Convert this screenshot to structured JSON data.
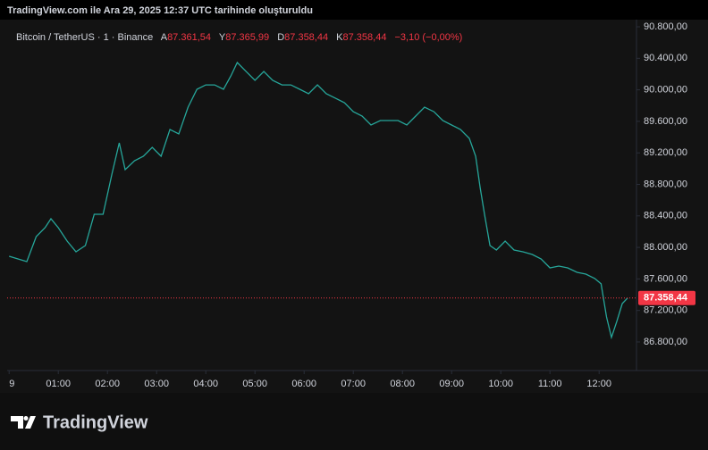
{
  "header": "TradingView.com ile Ara 29, 2025 12:37 UTC tarihinde oluşturuldu",
  "legend": {
    "symbol": "Bitcoin / TetherUS · 1 · Binance",
    "open_label": "A",
    "open": "87.361,54",
    "high_label": "Y",
    "high": "87.365,99",
    "low_label": "D",
    "low": "87.358,44",
    "close_label": "K",
    "close": "87.358,44",
    "change": "−3,10 (−0,00%)"
  },
  "brand": "TradingView",
  "chart_data": {
    "type": "line",
    "color": "#26a69a",
    "x": [
      0,
      0.18,
      0.36,
      0.55,
      0.73,
      0.85,
      1,
      1.18,
      1.36,
      1.55,
      1.73,
      1.91,
      2.09,
      2.24,
      2.36,
      2.55,
      2.73,
      2.91,
      3.09,
      3.27,
      3.45,
      3.64,
      3.82,
      4,
      4.18,
      4.36,
      4.51,
      4.64,
      4.82,
      5,
      5.18,
      5.36,
      5.55,
      5.73,
      5.91,
      6.09,
      6.27,
      6.45,
      6.64,
      6.82,
      7,
      7.18,
      7.36,
      7.55,
      7.73,
      7.91,
      8.09,
      8.27,
      8.45,
      8.64,
      8.82,
      9,
      9.18,
      9.36,
      9.49,
      9.58,
      9.67,
      9.78,
      9.91,
      10.09,
      10.27,
      10.45,
      10.64,
      10.82,
      11,
      11.18,
      11.36,
      11.55,
      11.73,
      11.91,
      12.04,
      12.15,
      12.25,
      12.36,
      12.47,
      12.58
    ],
    "values": [
      87888,
      87854,
      87820,
      88137,
      88250,
      88364,
      88250,
      88080,
      87944,
      88024,
      88420,
      88420,
      88930,
      89327,
      88987,
      89100,
      89157,
      89270,
      89157,
      89497,
      89440,
      89780,
      90007,
      90063,
      90063,
      90007,
      90177,
      90347,
      90233,
      90120,
      90233,
      90120,
      90063,
      90063,
      90007,
      89950,
      90063,
      89950,
      89893,
      89837,
      89723,
      89667,
      89554,
      89610,
      89610,
      89610,
      89554,
      89667,
      89780,
      89723,
      89610,
      89554,
      89497,
      89384,
      89157,
      88760,
      88420,
      88024,
      87967,
      88080,
      87967,
      87944,
      87910,
      87854,
      87740,
      87763,
      87740,
      87684,
      87661,
      87605,
      87537,
      87117,
      86857,
      87061,
      87287,
      87358.44
    ],
    "xlim": [
      -0.04,
      12.76
    ],
    "xticks": [
      {
        "value": 0,
        "label": "9"
      },
      {
        "value": 1,
        "label": "01:00"
      },
      {
        "value": 2,
        "label": "02:00"
      },
      {
        "value": 3,
        "label": "03:00"
      },
      {
        "value": 4,
        "label": "04:00"
      },
      {
        "value": 5,
        "label": "05:00"
      },
      {
        "value": 6,
        "label": "06:00"
      },
      {
        "value": 7,
        "label": "07:00"
      },
      {
        "value": 8,
        "label": "08:00"
      },
      {
        "value": 9,
        "label": "09:00"
      },
      {
        "value": 10,
        "label": "10:00"
      },
      {
        "value": 11,
        "label": "11:00"
      },
      {
        "value": 12,
        "label": "12:00"
      }
    ],
    "ylim": [
      86437,
      90891
    ],
    "yticks": [
      {
        "value": 86800,
        "label": "86.800,00"
      },
      {
        "value": 87200,
        "label": "87.200,00"
      },
      {
        "value": 87600,
        "label": "87.600,00"
      },
      {
        "value": 88000,
        "label": "88.000,00"
      },
      {
        "value": 88400,
        "label": "88.400,00"
      },
      {
        "value": 88800,
        "label": "88.800,00"
      },
      {
        "value": 89200,
        "label": "89.200,00"
      },
      {
        "value": 89600,
        "label": "89.600,00"
      },
      {
        "value": 90000,
        "label": "90.000,00"
      },
      {
        "value": 90400,
        "label": "90.400,00"
      },
      {
        "value": 90800,
        "label": "90.800,00"
      }
    ],
    "last_price": {
      "value": 87358.44,
      "label": "87.358,44",
      "color": "#f23645"
    }
  }
}
